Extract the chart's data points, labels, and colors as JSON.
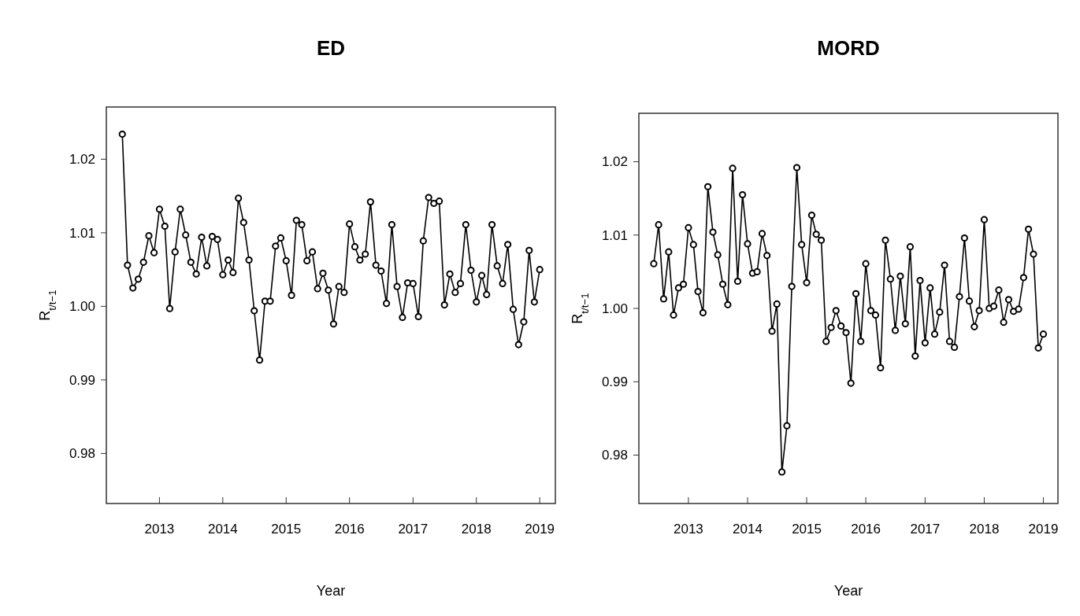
{
  "chart_data": [
    {
      "type": "line",
      "title": "ED",
      "xlabel": "Year",
      "ylabel": "R$_{t/t−1}$",
      "marker": "circle",
      "grid": false,
      "x": [
        "2012-06",
        "2012-07",
        "2012-08",
        "2012-09",
        "2012-10",
        "2012-11",
        "2012-12",
        "2013-01",
        "2013-02",
        "2013-03",
        "2013-04",
        "2013-05",
        "2013-06",
        "2013-07",
        "2013-08",
        "2013-09",
        "2013-10",
        "2013-11",
        "2013-12",
        "2014-01",
        "2014-02",
        "2014-03",
        "2014-04",
        "2014-05",
        "2014-06",
        "2014-07",
        "2014-08",
        "2014-09",
        "2014-10",
        "2014-11",
        "2014-12",
        "2015-01",
        "2015-02",
        "2015-03",
        "2015-04",
        "2015-05",
        "2015-06",
        "2015-07",
        "2015-08",
        "2015-09",
        "2015-10",
        "2015-11",
        "2015-12",
        "2016-01",
        "2016-02",
        "2016-03",
        "2016-04",
        "2016-05",
        "2016-06",
        "2016-07",
        "2016-08",
        "2016-09",
        "2016-10",
        "2016-11",
        "2016-12",
        "2017-01",
        "2017-02",
        "2017-03",
        "2017-04",
        "2017-05",
        "2017-06",
        "2017-07",
        "2017-08",
        "2017-09",
        "2017-10",
        "2017-11",
        "2017-12",
        "2018-01",
        "2018-02",
        "2018-03",
        "2018-04",
        "2018-05",
        "2018-06",
        "2018-07",
        "2018-08",
        "2018-09",
        "2018-10",
        "2018-11",
        "2018-12",
        "2019-01"
      ],
      "xlim": [
        "2012-03",
        "2019-04"
      ],
      "xticks": [
        "2013",
        "2014",
        "2015",
        "2016",
        "2017",
        "2018",
        "2019"
      ],
      "ylim": [
        0.9732,
        1.0271
      ],
      "yticks": [
        0.98,
        0.99,
        {
          "value": 1,
          "label": "1.00"
        },
        1.01,
        1.02
      ],
      "series": [
        {
          "color": "#000000",
          "values": [
            1.0234,
            1.0056,
            1.0025,
            1.0037,
            1.006,
            1.0096,
            1.0073,
            1.0132,
            1.0109,
            0.9997,
            1.0074,
            1.0132,
            1.0097,
            1.006,
            1.0044,
            1.0094,
            1.0055,
            1.0095,
            1.0091,
            1.0043,
            1.0063,
            1.0046,
            1.0147,
            1.0114,
            1.0063,
            0.9994,
            0.9927,
            1.0007,
            1.0007,
            1.0082,
            1.0093,
            1.0062,
            1.0015,
            1.0117,
            1.0111,
            1.0062,
            1.0074,
            1.0024,
            1.0045,
            1.0022,
            0.9976,
            1.0027,
            1.0019,
            1.0112,
            1.0081,
            1.0063,
            1.0071,
            1.0142,
            1.0056,
            1.0048,
            1.0004,
            1.0111,
            1.0027,
            0.9985,
            1.0032,
            1.0031,
            0.9986,
            1.0089,
            1.0148,
            1.014,
            1.0143,
            1.0002,
            1.0044,
            1.0019,
            1.0031,
            1.0111,
            1.0049,
            1.0006,
            1.0042,
            1.0016,
            1.0111,
            1.0055,
            1.0031,
            1.0084,
            0.9996,
            0.9948,
            0.9979,
            1.0076,
            1.0006,
            1.005
          ]
        }
      ]
    },
    {
      "type": "line",
      "title": "MORD",
      "xlabel": "Year",
      "ylabel": "R$_{t/t−1}$",
      "marker": "circle",
      "grid": false,
      "x": [
        "2012-06",
        "2012-07",
        "2012-08",
        "2012-09",
        "2012-10",
        "2012-11",
        "2012-12",
        "2013-01",
        "2013-02",
        "2013-03",
        "2013-04",
        "2013-05",
        "2013-06",
        "2013-07",
        "2013-08",
        "2013-09",
        "2013-10",
        "2013-11",
        "2013-12",
        "2014-01",
        "2014-02",
        "2014-03",
        "2014-04",
        "2014-05",
        "2014-06",
        "2014-07",
        "2014-08",
        "2014-09",
        "2014-10",
        "2014-11",
        "2014-12",
        "2015-01",
        "2015-02",
        "2015-03",
        "2015-04",
        "2015-05",
        "2015-06",
        "2015-07",
        "2015-08",
        "2015-09",
        "2015-10",
        "2015-11",
        "2015-12",
        "2016-01",
        "2016-02",
        "2016-03",
        "2016-04",
        "2016-05",
        "2016-06",
        "2016-07",
        "2016-08",
        "2016-09",
        "2016-10",
        "2016-11",
        "2016-12",
        "2017-01",
        "2017-02",
        "2017-03",
        "2017-04",
        "2017-05",
        "2017-06",
        "2017-07",
        "2017-08",
        "2017-09",
        "2017-10",
        "2017-11",
        "2017-12",
        "2018-01",
        "2018-02",
        "2018-03",
        "2018-04",
        "2018-05",
        "2018-06",
        "2018-07",
        "2018-08",
        "2018-09",
        "2018-10",
        "2018-11",
        "2018-12",
        "2019-01"
      ],
      "xlim": [
        "2012-03",
        "2019-04"
      ],
      "xticks": [
        "2013",
        "2014",
        "2015",
        "2016",
        "2017",
        "2018",
        "2019"
      ],
      "ylim": [
        0.9734,
        1.0266
      ],
      "yticks": [
        0.98,
        0.99,
        {
          "value": 1,
          "label": "1.00"
        },
        1.01,
        1.02
      ],
      "series": [
        {
          "color": "#000000",
          "values": [
            1.0061,
            1.0114,
            1.0013,
            1.0077,
            0.9991,
            1.0028,
            1.0033,
            1.011,
            1.0087,
            1.0023,
            0.9994,
            1.0166,
            1.0104,
            1.0073,
            1.0033,
            1.0005,
            1.0191,
            1.0037,
            1.0155,
            1.0088,
            1.0048,
            1.005,
            1.0102,
            1.0072,
            0.9969,
            1.0006,
            0.9777,
            0.984,
            1.003,
            1.0192,
            1.0087,
            1.0035,
            1.0127,
            1.0101,
            1.0093,
            0.9955,
            0.9974,
            0.9997,
            0.9976,
            0.9967,
            0.9898,
            1.002,
            0.9955,
            1.0061,
            0.9997,
            0.9991,
            0.9919,
            1.0093,
            1.004,
            0.997,
            1.0044,
            0.9979,
            1.0084,
            0.9935,
            1.0038,
            0.9953,
            1.0028,
            0.9965,
            0.9995,
            1.0059,
            0.9955,
            0.9947,
            1.0016,
            1.0096,
            1.001,
            0.9975,
            0.9997,
            1.0121,
            1.0,
            1.0003,
            1.0025,
            0.9981,
            1.0012,
            0.9996,
            0.9999,
            1.0042,
            1.0108,
            1.0074,
            0.9946,
            0.9965
          ]
        }
      ]
    }
  ]
}
